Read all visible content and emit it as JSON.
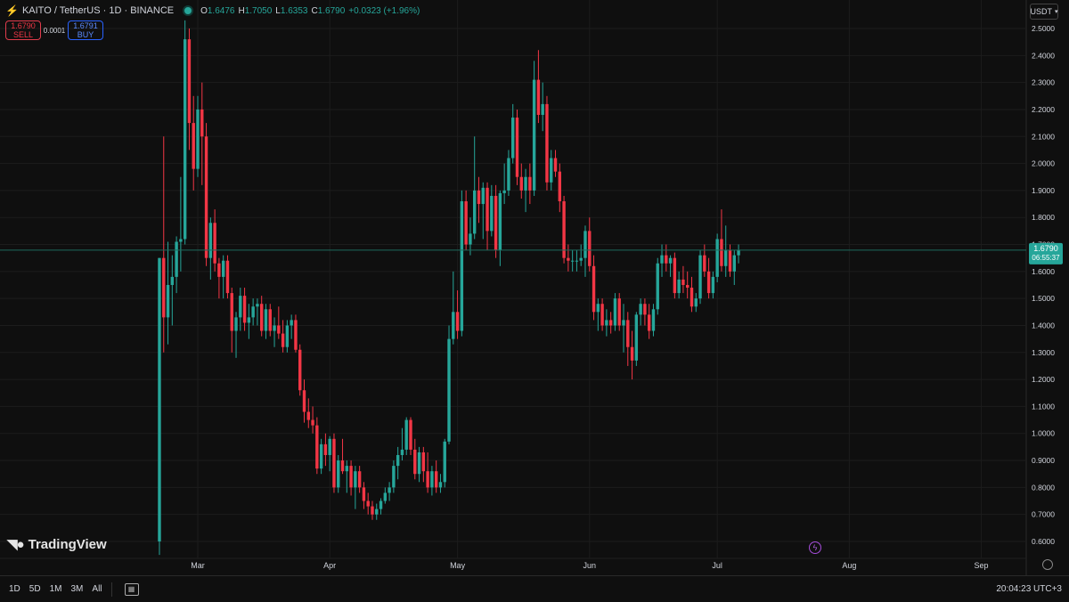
{
  "header": {
    "title": "KAITO / TetherUS · 1D · BINANCE",
    "open_label": "O",
    "open": "1.6476",
    "high_label": "H",
    "high": "1.7050",
    "low_label": "L",
    "low": "1.6353",
    "close_label": "C",
    "close": "1.6790",
    "change": "+0.0323 (+1.96%)"
  },
  "trade": {
    "sell_price": "1.6790",
    "sell_label": "SELL",
    "spread": "0.0001",
    "buy_price": "1.6791",
    "buy_label": "BUY"
  },
  "currency_button": "USDT",
  "price_tag": {
    "value": "1.6790",
    "countdown": "06:55:37"
  },
  "logo_text": "TradingView",
  "timeframes": [
    "1D",
    "5D",
    "1M",
    "3M",
    "All"
  ],
  "clock": "20:04:23 UTC+3",
  "colors": {
    "up": "#26a69a",
    "down": "#f23645",
    "background": "#0f0f0f",
    "grid": "#1c1c1c"
  },
  "chart_data": {
    "type": "candlestick",
    "y_ticks": [
      "2.5000",
      "2.4000",
      "2.3000",
      "2.2000",
      "2.1000",
      "2.0000",
      "1.9000",
      "1.8000",
      "1.7000",
      "1.6000",
      "1.5000",
      "1.4000",
      "1.3000",
      "1.2000",
      "1.1000",
      "1.0000",
      "0.9000",
      "0.8000",
      "0.7000",
      "0.6000"
    ],
    "x_ticks": [
      "Mar",
      "Apr",
      "May",
      "Jun",
      "Jul",
      "Aug",
      "Sep"
    ],
    "ylim": [
      0.55,
      2.53
    ],
    "x_tick_dates": [
      "2025-03-01",
      "2025-04-01",
      "2025-05-01",
      "2025-06-01",
      "2025-07-01",
      "2025-08-01",
      "2025-09-01"
    ],
    "candles": [
      {
        "date": "2025-02-20",
        "o": 0.6,
        "h": 1.65,
        "l": 0.55,
        "c": 1.65
      },
      {
        "date": "2025-02-21",
        "o": 1.65,
        "h": 2.1,
        "l": 1.3,
        "c": 1.43
      },
      {
        "date": "2025-02-22",
        "o": 1.43,
        "h": 1.71,
        "l": 1.33,
        "c": 1.55
      },
      {
        "date": "2025-02-23",
        "o": 1.55,
        "h": 1.66,
        "l": 1.4,
        "c": 1.58
      },
      {
        "date": "2025-02-24",
        "o": 1.58,
        "h": 1.73,
        "l": 1.52,
        "c": 1.71
      },
      {
        "date": "2025-02-25",
        "o": 1.71,
        "h": 1.95,
        "l": 1.6,
        "c": 1.72
      },
      {
        "date": "2025-02-26",
        "o": 1.72,
        "h": 2.55,
        "l": 1.7,
        "c": 2.46
      },
      {
        "date": "2025-02-27",
        "o": 2.46,
        "h": 2.5,
        "l": 2.05,
        "c": 2.15
      },
      {
        "date": "2025-02-28",
        "o": 2.15,
        "h": 2.25,
        "l": 1.9,
        "c": 1.98
      },
      {
        "date": "2025-03-01",
        "o": 1.98,
        "h": 2.25,
        "l": 1.95,
        "c": 2.2
      },
      {
        "date": "2025-03-02",
        "o": 2.2,
        "h": 2.3,
        "l": 1.92,
        "c": 2.1
      },
      {
        "date": "2025-03-03",
        "o": 2.1,
        "h": 2.15,
        "l": 1.62,
        "c": 1.65
      },
      {
        "date": "2025-03-04",
        "o": 1.65,
        "h": 1.8,
        "l": 1.57,
        "c": 1.78
      },
      {
        "date": "2025-03-05",
        "o": 1.78,
        "h": 1.83,
        "l": 1.6,
        "c": 1.63
      },
      {
        "date": "2025-03-06",
        "o": 1.63,
        "h": 1.65,
        "l": 1.5,
        "c": 1.58
      },
      {
        "date": "2025-03-07",
        "o": 1.58,
        "h": 1.66,
        "l": 1.5,
        "c": 1.64
      },
      {
        "date": "2025-03-08",
        "o": 1.64,
        "h": 1.66,
        "l": 1.5,
        "c": 1.52
      },
      {
        "date": "2025-03-09",
        "o": 1.52,
        "h": 1.54,
        "l": 1.3,
        "c": 1.38
      },
      {
        "date": "2025-03-10",
        "o": 1.38,
        "h": 1.45,
        "l": 1.28,
        "c": 1.43
      },
      {
        "date": "2025-03-11",
        "o": 1.43,
        "h": 1.54,
        "l": 1.38,
        "c": 1.51
      },
      {
        "date": "2025-03-12",
        "o": 1.51,
        "h": 1.54,
        "l": 1.38,
        "c": 1.41
      },
      {
        "date": "2025-03-13",
        "o": 1.41,
        "h": 1.48,
        "l": 1.35,
        "c": 1.43
      },
      {
        "date": "2025-03-14",
        "o": 1.43,
        "h": 1.5,
        "l": 1.4,
        "c": 1.47
      },
      {
        "date": "2025-03-15",
        "o": 1.47,
        "h": 1.5,
        "l": 1.4,
        "c": 1.48
      },
      {
        "date": "2025-03-16",
        "o": 1.48,
        "h": 1.51,
        "l": 1.36,
        "c": 1.38
      },
      {
        "date": "2025-03-17",
        "o": 1.38,
        "h": 1.48,
        "l": 1.35,
        "c": 1.46
      },
      {
        "date": "2025-03-18",
        "o": 1.46,
        "h": 1.48,
        "l": 1.36,
        "c": 1.38
      },
      {
        "date": "2025-03-19",
        "o": 1.38,
        "h": 1.43,
        "l": 1.32,
        "c": 1.4
      },
      {
        "date": "2025-03-20",
        "o": 1.4,
        "h": 1.47,
        "l": 1.35,
        "c": 1.37
      },
      {
        "date": "2025-03-21",
        "o": 1.37,
        "h": 1.42,
        "l": 1.3,
        "c": 1.32
      },
      {
        "date": "2025-03-22",
        "o": 1.32,
        "h": 1.42,
        "l": 1.3,
        "c": 1.4
      },
      {
        "date": "2025-03-23",
        "o": 1.4,
        "h": 1.44,
        "l": 1.35,
        "c": 1.42
      },
      {
        "date": "2025-03-24",
        "o": 1.42,
        "h": 1.44,
        "l": 1.3,
        "c": 1.31
      },
      {
        "date": "2025-03-25",
        "o": 1.31,
        "h": 1.33,
        "l": 1.14,
        "c": 1.16
      },
      {
        "date": "2025-03-26",
        "o": 1.16,
        "h": 1.2,
        "l": 1.04,
        "c": 1.08
      },
      {
        "date": "2025-03-27",
        "o": 1.08,
        "h": 1.13,
        "l": 1.02,
        "c": 1.05
      },
      {
        "date": "2025-03-28",
        "o": 1.05,
        "h": 1.1,
        "l": 1.0,
        "c": 1.03
      },
      {
        "date": "2025-03-29",
        "o": 1.03,
        "h": 1.06,
        "l": 0.85,
        "c": 0.87
      },
      {
        "date": "2025-03-30",
        "o": 0.87,
        "h": 0.98,
        "l": 0.85,
        "c": 0.96
      },
      {
        "date": "2025-03-31",
        "o": 0.96,
        "h": 1.0,
        "l": 0.88,
        "c": 0.92
      },
      {
        "date": "2025-04-01",
        "o": 0.92,
        "h": 0.99,
        "l": 0.86,
        "c": 0.98
      },
      {
        "date": "2025-04-02",
        "o": 0.98,
        "h": 1.0,
        "l": 0.78,
        "c": 0.8
      },
      {
        "date": "2025-04-03",
        "o": 0.8,
        "h": 0.92,
        "l": 0.78,
        "c": 0.9
      },
      {
        "date": "2025-04-04",
        "o": 0.9,
        "h": 0.98,
        "l": 0.85,
        "c": 0.86
      },
      {
        "date": "2025-04-05",
        "o": 0.86,
        "h": 0.9,
        "l": 0.78,
        "c": 0.88
      },
      {
        "date": "2025-04-06",
        "o": 0.88,
        "h": 0.9,
        "l": 0.77,
        "c": 0.8
      },
      {
        "date": "2025-04-07",
        "o": 0.8,
        "h": 0.88,
        "l": 0.72,
        "c": 0.86
      },
      {
        "date": "2025-04-08",
        "o": 0.86,
        "h": 0.88,
        "l": 0.78,
        "c": 0.8
      },
      {
        "date": "2025-04-09",
        "o": 0.8,
        "h": 0.82,
        "l": 0.72,
        "c": 0.75
      },
      {
        "date": "2025-04-10",
        "o": 0.75,
        "h": 0.78,
        "l": 0.7,
        "c": 0.73
      },
      {
        "date": "2025-04-11",
        "o": 0.73,
        "h": 0.75,
        "l": 0.68,
        "c": 0.7
      },
      {
        "date": "2025-04-12",
        "o": 0.7,
        "h": 0.74,
        "l": 0.68,
        "c": 0.72
      },
      {
        "date": "2025-04-13",
        "o": 0.72,
        "h": 0.76,
        "l": 0.7,
        "c": 0.75
      },
      {
        "date": "2025-04-14",
        "o": 0.75,
        "h": 0.8,
        "l": 0.74,
        "c": 0.78
      },
      {
        "date": "2025-04-15",
        "o": 0.78,
        "h": 0.82,
        "l": 0.75,
        "c": 0.8
      },
      {
        "date": "2025-04-16",
        "o": 0.8,
        "h": 0.9,
        "l": 0.78,
        "c": 0.88
      },
      {
        "date": "2025-04-17",
        "o": 0.88,
        "h": 0.95,
        "l": 0.83,
        "c": 0.92
      },
      {
        "date": "2025-04-18",
        "o": 0.92,
        "h": 1.02,
        "l": 0.9,
        "c": 0.94
      },
      {
        "date": "2025-04-19",
        "o": 0.94,
        "h": 1.06,
        "l": 0.92,
        "c": 1.05
      },
      {
        "date": "2025-04-20",
        "o": 1.05,
        "h": 1.06,
        "l": 0.92,
        "c": 0.94
      },
      {
        "date": "2025-04-21",
        "o": 0.94,
        "h": 0.98,
        "l": 0.83,
        "c": 0.85
      },
      {
        "date": "2025-04-22",
        "o": 0.85,
        "h": 0.95,
        "l": 0.82,
        "c": 0.93
      },
      {
        "date": "2025-04-23",
        "o": 0.93,
        "h": 0.95,
        "l": 0.82,
        "c": 0.86
      },
      {
        "date": "2025-04-24",
        "o": 0.86,
        "h": 0.93,
        "l": 0.78,
        "c": 0.8
      },
      {
        "date": "2025-04-25",
        "o": 0.8,
        "h": 0.88,
        "l": 0.77,
        "c": 0.86
      },
      {
        "date": "2025-04-26",
        "o": 0.86,
        "h": 0.9,
        "l": 0.78,
        "c": 0.8
      },
      {
        "date": "2025-04-27",
        "o": 0.8,
        "h": 0.85,
        "l": 0.78,
        "c": 0.82
      },
      {
        "date": "2025-04-28",
        "o": 0.82,
        "h": 0.98,
        "l": 0.8,
        "c": 0.97
      },
      {
        "date": "2025-04-29",
        "o": 0.97,
        "h": 1.4,
        "l": 0.96,
        "c": 1.35
      },
      {
        "date": "2025-04-30",
        "o": 1.35,
        "h": 1.6,
        "l": 1.33,
        "c": 1.45
      },
      {
        "date": "2025-05-01",
        "o": 1.45,
        "h": 1.53,
        "l": 1.35,
        "c": 1.38
      },
      {
        "date": "2025-05-02",
        "o": 1.38,
        "h": 1.9,
        "l": 1.36,
        "c": 1.86
      },
      {
        "date": "2025-05-03",
        "o": 1.86,
        "h": 1.9,
        "l": 1.68,
        "c": 1.7
      },
      {
        "date": "2025-05-04",
        "o": 1.7,
        "h": 1.8,
        "l": 1.66,
        "c": 1.74
      },
      {
        "date": "2025-05-05",
        "o": 1.74,
        "h": 2.1,
        "l": 1.72,
        "c": 1.9
      },
      {
        "date": "2025-05-06",
        "o": 1.9,
        "h": 1.95,
        "l": 1.78,
        "c": 1.85
      },
      {
        "date": "2025-05-07",
        "o": 1.85,
        "h": 1.93,
        "l": 1.72,
        "c": 1.91
      },
      {
        "date": "2025-05-08",
        "o": 1.91,
        "h": 1.93,
        "l": 1.68,
        "c": 1.75
      },
      {
        "date": "2025-05-09",
        "o": 1.75,
        "h": 1.92,
        "l": 1.73,
        "c": 1.88
      },
      {
        "date": "2025-05-10",
        "o": 1.88,
        "h": 1.92,
        "l": 1.65,
        "c": 1.68
      },
      {
        "date": "2025-05-11",
        "o": 1.68,
        "h": 1.9,
        "l": 1.62,
        "c": 1.89
      },
      {
        "date": "2025-05-12",
        "o": 1.89,
        "h": 2.0,
        "l": 1.85,
        "c": 1.9
      },
      {
        "date": "2025-05-13",
        "o": 1.9,
        "h": 2.05,
        "l": 1.88,
        "c": 2.02
      },
      {
        "date": "2025-05-14",
        "o": 2.02,
        "h": 2.22,
        "l": 2.0,
        "c": 2.17
      },
      {
        "date": "2025-05-15",
        "o": 2.17,
        "h": 2.2,
        "l": 1.92,
        "c": 1.95
      },
      {
        "date": "2025-05-16",
        "o": 1.95,
        "h": 2.0,
        "l": 1.87,
        "c": 1.9
      },
      {
        "date": "2025-05-17",
        "o": 1.9,
        "h": 1.98,
        "l": 1.82,
        "c": 1.95
      },
      {
        "date": "2025-05-18",
        "o": 1.95,
        "h": 2.0,
        "l": 1.85,
        "c": 1.9
      },
      {
        "date": "2025-05-19",
        "o": 1.9,
        "h": 2.38,
        "l": 1.88,
        "c": 2.31
      },
      {
        "date": "2025-05-20",
        "o": 2.31,
        "h": 2.42,
        "l": 2.15,
        "c": 2.18
      },
      {
        "date": "2025-05-21",
        "o": 2.18,
        "h": 2.3,
        "l": 2.12,
        "c": 2.22
      },
      {
        "date": "2025-05-22",
        "o": 2.22,
        "h": 2.25,
        "l": 1.9,
        "c": 1.93
      },
      {
        "date": "2025-05-23",
        "o": 1.93,
        "h": 2.05,
        "l": 1.9,
        "c": 2.02
      },
      {
        "date": "2025-05-24",
        "o": 2.02,
        "h": 2.05,
        "l": 1.95,
        "c": 1.97
      },
      {
        "date": "2025-05-25",
        "o": 1.97,
        "h": 2.0,
        "l": 1.82,
        "c": 1.86
      },
      {
        "date": "2025-05-26",
        "o": 1.86,
        "h": 1.88,
        "l": 1.63,
        "c": 1.65
      },
      {
        "date": "2025-05-27",
        "o": 1.65,
        "h": 1.7,
        "l": 1.6,
        "c": 1.64
      },
      {
        "date": "2025-05-28",
        "o": 1.64,
        "h": 1.68,
        "l": 1.6,
        "c": 1.64
      },
      {
        "date": "2025-05-29",
        "o": 1.64,
        "h": 1.68,
        "l": 1.6,
        "c": 1.64
      },
      {
        "date": "2025-05-30",
        "o": 1.64,
        "h": 1.7,
        "l": 1.62,
        "c": 1.65
      },
      {
        "date": "2025-05-31",
        "o": 1.65,
        "h": 1.77,
        "l": 1.58,
        "c": 1.75
      },
      {
        "date": "2025-06-01",
        "o": 1.75,
        "h": 1.8,
        "l": 1.6,
        "c": 1.62
      },
      {
        "date": "2025-06-02",
        "o": 1.62,
        "h": 1.66,
        "l": 1.42,
        "c": 1.45
      },
      {
        "date": "2025-06-03",
        "o": 1.45,
        "h": 1.5,
        "l": 1.38,
        "c": 1.48
      },
      {
        "date": "2025-06-04",
        "o": 1.48,
        "h": 1.5,
        "l": 1.38,
        "c": 1.4
      },
      {
        "date": "2025-06-05",
        "o": 1.4,
        "h": 1.46,
        "l": 1.36,
        "c": 1.42
      },
      {
        "date": "2025-06-06",
        "o": 1.42,
        "h": 1.45,
        "l": 1.37,
        "c": 1.4
      },
      {
        "date": "2025-06-07",
        "o": 1.4,
        "h": 1.52,
        "l": 1.38,
        "c": 1.5
      },
      {
        "date": "2025-06-08",
        "o": 1.5,
        "h": 1.52,
        "l": 1.38,
        "c": 1.4
      },
      {
        "date": "2025-06-09",
        "o": 1.4,
        "h": 1.48,
        "l": 1.3,
        "c": 1.42
      },
      {
        "date": "2025-06-10",
        "o": 1.42,
        "h": 1.45,
        "l": 1.25,
        "c": 1.32
      },
      {
        "date": "2025-06-11",
        "o": 1.32,
        "h": 1.38,
        "l": 1.2,
        "c": 1.27
      },
      {
        "date": "2025-06-12",
        "o": 1.27,
        "h": 1.45,
        "l": 1.25,
        "c": 1.44
      },
      {
        "date": "2025-06-13",
        "o": 1.44,
        "h": 1.5,
        "l": 1.4,
        "c": 1.48
      },
      {
        "date": "2025-06-14",
        "o": 1.48,
        "h": 1.5,
        "l": 1.4,
        "c": 1.44
      },
      {
        "date": "2025-06-15",
        "o": 1.44,
        "h": 1.48,
        "l": 1.35,
        "c": 1.38
      },
      {
        "date": "2025-06-16",
        "o": 1.38,
        "h": 1.48,
        "l": 1.36,
        "c": 1.46
      },
      {
        "date": "2025-06-17",
        "o": 1.46,
        "h": 1.65,
        "l": 1.44,
        "c": 1.63
      },
      {
        "date": "2025-06-18",
        "o": 1.63,
        "h": 1.7,
        "l": 1.58,
        "c": 1.66
      },
      {
        "date": "2025-06-19",
        "o": 1.66,
        "h": 1.7,
        "l": 1.6,
        "c": 1.63
      },
      {
        "date": "2025-06-20",
        "o": 1.63,
        "h": 1.66,
        "l": 1.58,
        "c": 1.65
      },
      {
        "date": "2025-06-21",
        "o": 1.65,
        "h": 1.67,
        "l": 1.5,
        "c": 1.52
      },
      {
        "date": "2025-06-22",
        "o": 1.52,
        "h": 1.6,
        "l": 1.5,
        "c": 1.57
      },
      {
        "date": "2025-06-23",
        "o": 1.57,
        "h": 1.62,
        "l": 1.52,
        "c": 1.55
      },
      {
        "date": "2025-06-24",
        "o": 1.55,
        "h": 1.6,
        "l": 1.5,
        "c": 1.54
      },
      {
        "date": "2025-06-25",
        "o": 1.54,
        "h": 1.58,
        "l": 1.45,
        "c": 1.47
      },
      {
        "date": "2025-06-26",
        "o": 1.47,
        "h": 1.52,
        "l": 1.45,
        "c": 1.5
      },
      {
        "date": "2025-06-27",
        "o": 1.5,
        "h": 1.68,
        "l": 1.48,
        "c": 1.66
      },
      {
        "date": "2025-06-28",
        "o": 1.66,
        "h": 1.7,
        "l": 1.58,
        "c": 1.6
      },
      {
        "date": "2025-06-29",
        "o": 1.6,
        "h": 1.65,
        "l": 1.5,
        "c": 1.52
      },
      {
        "date": "2025-06-30",
        "o": 1.52,
        "h": 1.6,
        "l": 1.5,
        "c": 1.58
      },
      {
        "date": "2025-07-01",
        "o": 1.58,
        "h": 1.74,
        "l": 1.56,
        "c": 1.72
      },
      {
        "date": "2025-07-02",
        "o": 1.72,
        "h": 1.83,
        "l": 1.6,
        "c": 1.62
      },
      {
        "date": "2025-07-03",
        "o": 1.62,
        "h": 1.77,
        "l": 1.58,
        "c": 1.68
      },
      {
        "date": "2025-07-04",
        "o": 1.68,
        "h": 1.7,
        "l": 1.58,
        "c": 1.6
      },
      {
        "date": "2025-07-05",
        "o": 1.6,
        "h": 1.68,
        "l": 1.55,
        "c": 1.66
      },
      {
        "date": "2025-07-06",
        "o": 1.66,
        "h": 1.7,
        "l": 1.63,
        "c": 1.679
      }
    ]
  }
}
